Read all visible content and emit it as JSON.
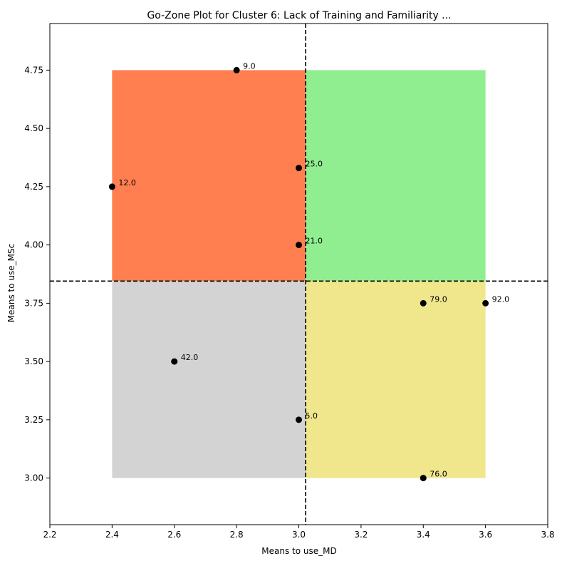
{
  "chart_data": {
    "type": "scatter",
    "title": "Go-Zone Plot for Cluster 6: Lack of Training and Familiarity ...",
    "xlabel": "Means to use_MD",
    "ylabel": "Means to use_MSc",
    "xlim": [
      2.2,
      3.8
    ],
    "ylim": [
      2.8,
      4.95
    ],
    "xticks": [
      "2.2",
      "2.4",
      "2.6",
      "2.8",
      "3.0",
      "3.2",
      "3.4",
      "3.6",
      "3.8"
    ],
    "yticks": [
      "3.00",
      "3.25",
      "3.50",
      "3.75",
      "4.00",
      "4.25",
      "4.50",
      "4.75"
    ],
    "grid": false,
    "x_mean": 3.022,
    "y_mean": 3.845,
    "zones": [
      {
        "name": "upper-left",
        "x": [
          2.4,
          3.022
        ],
        "y": [
          3.845,
          4.75
        ],
        "color": "#FF7F50"
      },
      {
        "name": "upper-right",
        "x": [
          3.022,
          3.6
        ],
        "y": [
          3.845,
          4.75
        ],
        "color": "#90EE90"
      },
      {
        "name": "lower-left",
        "x": [
          2.4,
          3.022
        ],
        "y": [
          3.0,
          3.845
        ],
        "color": "#D3D3D3"
      },
      {
        "name": "lower-right",
        "x": [
          3.022,
          3.6
        ],
        "y": [
          3.0,
          3.845
        ],
        "color": "#F0E68C"
      }
    ],
    "points": [
      {
        "label": "9.0",
        "x": 2.8,
        "y": 4.75
      },
      {
        "label": "12.0",
        "x": 2.4,
        "y": 4.25
      },
      {
        "label": "25.0",
        "x": 3.0,
        "y": 4.33
      },
      {
        "label": "21.0",
        "x": 3.0,
        "y": 4.0
      },
      {
        "label": "79.0",
        "x": 3.4,
        "y": 3.75
      },
      {
        "label": "92.0",
        "x": 3.6,
        "y": 3.75
      },
      {
        "label": "42.0",
        "x": 2.6,
        "y": 3.5
      },
      {
        "label": "5.0",
        "x": 3.0,
        "y": 3.25
      },
      {
        "label": "76.0",
        "x": 3.4,
        "y": 3.0
      }
    ]
  }
}
